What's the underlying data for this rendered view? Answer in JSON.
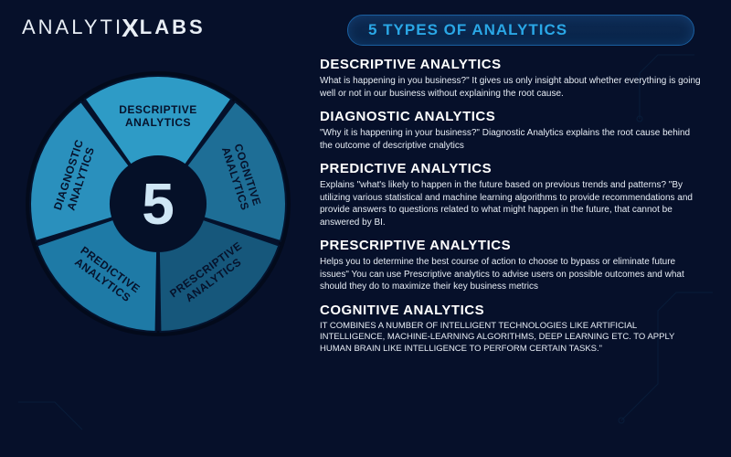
{
  "brand": {
    "part1": "ANALYTI",
    "x": "X",
    "part2": "LABS"
  },
  "title": "5 TYPES OF ANALYTICS",
  "colors": {
    "background": "#06102a",
    "title_text": "#2aa7e6",
    "title_pill_bg_top": "#0e2a52",
    "title_pill_bg_bottom": "#082449",
    "title_pill_border": "#1a5fa0",
    "body_text": "#e7edf5",
    "heading_text": "#ffffff",
    "logo_text": "#e8eef5",
    "center_number": "#cfe6f5"
  },
  "wheel": {
    "type": "donut-segments",
    "center_number": "5",
    "center_fontsize": 64,
    "inner_radius": 52,
    "outer_radius": 140,
    "gap_deg": 2,
    "center_fill": "#051028",
    "segment_label_fontsize": 12,
    "segments": [
      {
        "id": "descriptive",
        "label_l1": "DESCRIPTIVE",
        "label_l2": "ANALYTICS",
        "start_deg": -126,
        "end_deg": -54,
        "fill": "#2e9bc6",
        "text_fill": "#06122b"
      },
      {
        "id": "cognitive",
        "label_l1": "COGNITIVE",
        "label_l2": "ANALYTICS",
        "start_deg": -54,
        "end_deg": 18,
        "fill": "#1e6e96",
        "text_fill": "#06122b"
      },
      {
        "id": "prescriptive",
        "label_l1": "PRESCRIPTIVE",
        "label_l2": "ANALYTICS",
        "start_deg": 18,
        "end_deg": 90,
        "fill": "#16577b",
        "text_fill": "#e6f2fb"
      },
      {
        "id": "predictive",
        "label_l1": "PREDICTIVE",
        "label_l2": "ANALYTICS",
        "start_deg": 90,
        "end_deg": 162,
        "fill": "#1e7aa6",
        "text_fill": "#06122b"
      },
      {
        "id": "diagnostic",
        "label_l1": "DIAGNOSTIC",
        "label_l2": "ANALYTICS",
        "start_deg": 162,
        "end_deg": 234,
        "fill": "#2a90bd",
        "text_fill": "#06122b"
      }
    ]
  },
  "sections": [
    {
      "id": "descriptive",
      "heading": "DESCRIPTIVE ANALYTICS",
      "body": "What is happening in you business?\"\nIt gives us only insight about whether everything is going well or not in our business without explaining the root cause."
    },
    {
      "id": "diagnostic",
      "heading": "DIAGNOSTIC ANALYTICS",
      "body": "\"Why it is happening in your business?\"\nDiagnostic Analytics explains the root cause behind the outcome of descriptive cnalytics"
    },
    {
      "id": "predictive",
      "heading": "PREDICTIVE ANALYTICS",
      "body": "Explains \"what's likely to happen in the future based on previous trends and patterns? \"By utilizing various statistical and machine learning algorithms to provide recommendations and provide answers to questions related to what might happen in the future, that cannot be answered by BI."
    },
    {
      "id": "prescriptive",
      "heading": "PRESCRIPTIVE ANALYTICS",
      "body": "Helps you to determine the best course of action to choose to bypass or eliminate future issues\" You can use Prescriptive analytics to advise users on possible outcomes and what should they do to maximize their key business metrics"
    },
    {
      "id": "cognitive",
      "heading": "COGNITIVE ANALYTICS",
      "body": "It combines a number of intelligent technologies like artificial intelligence, machine-learning algorithms, deep learning etc. to apply human brain like intelligence to perform certain tasks.\""
    }
  ]
}
